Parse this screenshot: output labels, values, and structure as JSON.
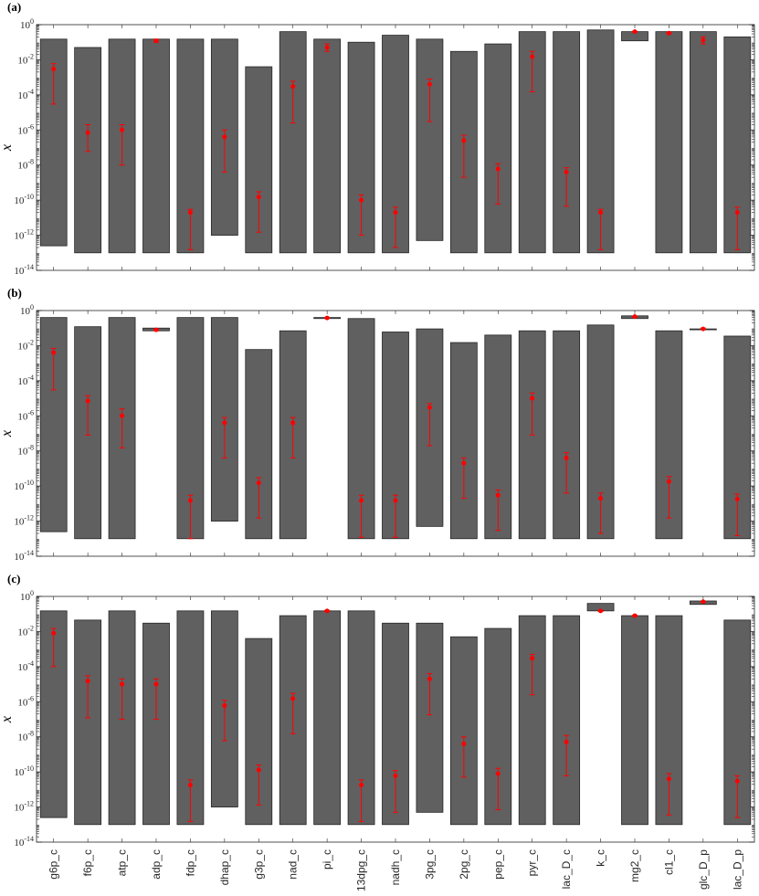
{
  "figure": {
    "ylabel": "x",
    "categories": [
      "g6p_c",
      "f6p_c",
      "atp_c",
      "adp_c",
      "fdp_c",
      "dhap_c",
      "g3p_c",
      "nad_c",
      "pi_c",
      "13dpg_c",
      "nadh_c",
      "3pg_c",
      "2pg_c",
      "pep_c",
      "pyr_c",
      "lac_D_c",
      "k_c",
      "mg2_c",
      "cl1_c",
      "glc_D_p",
      "lac_D_p"
    ],
    "colors": {
      "bar": "#606060",
      "bar_edge": "#262626",
      "marker": "#ff0000",
      "axis": "#262626"
    }
  },
  "chart_data": [
    {
      "type": "bar",
      "panel_label": "(a)",
      "ylabel": "x",
      "yscale": "log",
      "ylim": [
        1e-14,
        1
      ],
      "ytick_labels": [
        "10^-14",
        "10^-12",
        "10^-10",
        "10^-8",
        "10^-6",
        "10^-4",
        "10^-2",
        "10^0"
      ],
      "xtick_labels_shown": false,
      "categories": [
        "g6p_c",
        "f6p_c",
        "atp_c",
        "adp_c",
        "fdp_c",
        "dhap_c",
        "g3p_c",
        "nad_c",
        "pi_c",
        "13dpg_c",
        "nadh_c",
        "3pg_c",
        "2pg_c",
        "pep_c",
        "pyr_c",
        "lac_D_c",
        "k_c",
        "mg2_c",
        "cl1_c",
        "glc_D_p",
        "lac_D_p"
      ],
      "bar_lower": [
        2.5e-13,
        1e-13,
        1e-13,
        1e-13,
        1e-13,
        1e-12,
        1e-13,
        1e-13,
        1e-13,
        1e-13,
        1e-13,
        5e-13,
        1e-13,
        1e-13,
        1e-13,
        1e-13,
        1e-13,
        0.12,
        1e-13,
        1e-13,
        1e-13
      ],
      "bar_upper": [
        0.15,
        0.05,
        0.15,
        0.15,
        0.15,
        0.15,
        0.004,
        0.4,
        0.15,
        0.1,
        0.25,
        0.15,
        0.03,
        0.08,
        0.4,
        0.4,
        0.5,
        0.4,
        0.4,
        0.4,
        0.2
      ],
      "marker": [
        0.003,
        7e-07,
        1e-06,
        0.12,
        2e-11,
        4e-07,
        1.5e-10,
        0.0003,
        0.05,
        1e-10,
        2e-11,
        0.0004,
        2.5e-07,
        6e-09,
        0.015,
        4e-09,
        2e-11,
        0.4,
        0.33,
        0.13,
        2e-11
      ],
      "err_low": [
        3e-05,
        6e-08,
        1e-08,
        0.1,
        1.5e-13,
        4e-09,
        1.5e-12,
        2.5e-06,
        0.03,
        1e-12,
        2e-13,
        3e-06,
        2e-09,
        6e-11,
        0.00015,
        4.5e-11,
        1.5e-13,
        0.38,
        0.3,
        0.08,
        1.5e-13
      ],
      "err_high": [
        0.006,
        2e-06,
        2e-06,
        0.15,
        3e-11,
        1e-06,
        3e-10,
        0.0006,
        0.08,
        2e-10,
        4e-11,
        0.0008,
        5e-07,
        1.2e-08,
        0.03,
        7e-09,
        3e-11,
        0.42,
        0.36,
        0.2,
        4e-11
      ]
    },
    {
      "type": "bar",
      "panel_label": "(b)",
      "ylabel": "x",
      "yscale": "log",
      "ylim": [
        1e-14,
        1
      ],
      "ytick_labels": [
        "10^-14",
        "10^-12",
        "10^-10",
        "10^-8",
        "10^-6",
        "10^-4",
        "10^-2",
        "10^0"
      ],
      "xtick_labels_shown": false,
      "categories": [
        "g6p_c",
        "f6p_c",
        "atp_c",
        "adp_c",
        "fdp_c",
        "dhap_c",
        "g3p_c",
        "nad_c",
        "pi_c",
        "13dpg_c",
        "nadh_c",
        "3pg_c",
        "2pg_c",
        "pep_c",
        "pyr_c",
        "lac_D_c",
        "k_c",
        "mg2_c",
        "cl1_c",
        "glc_D_p",
        "lac_D_p"
      ],
      "bar_lower": [
        2.5e-13,
        1e-13,
        1e-13,
        0.07,
        1e-13,
        1e-12,
        1e-13,
        1e-13,
        0.35,
        1e-13,
        1e-13,
        5e-13,
        1e-13,
        1e-13,
        1e-13,
        1e-13,
        1e-13,
        0.35,
        1e-13,
        0.08,
        1e-13
      ],
      "bar_upper": [
        0.4,
        0.12,
        0.4,
        0.1,
        0.4,
        0.4,
        0.006,
        0.07,
        0.4,
        0.35,
        0.06,
        0.09,
        0.015,
        0.04,
        0.07,
        0.07,
        0.15,
        0.5,
        0.07,
        0.09,
        0.035
      ],
      "marker": [
        0.004,
        7e-06,
        1e-06,
        0.08,
        1.5e-11,
        4e-07,
        1.5e-10,
        4e-07,
        0.38,
        1.5e-11,
        1.5e-11,
        3e-06,
        2e-09,
        3e-11,
        1e-05,
        4e-09,
        2e-11,
        0.45,
        1.8e-10,
        0.09,
        1.8e-11
      ],
      "err_low": [
        3e-05,
        8e-08,
        1.5e-08,
        0.07,
        1e-13,
        4e-09,
        1.5e-12,
        4e-09,
        0.35,
        1.2e-13,
        1.2e-13,
        2e-08,
        2e-11,
        3e-13,
        8e-08,
        4e-11,
        2e-13,
        0.42,
        1.5e-12,
        0.085,
        1.5e-13
      ],
      "err_high": [
        0.007,
        1.4e-05,
        2.5e-06,
        0.09,
        3e-11,
        8e-07,
        3e-10,
        8e-07,
        0.4,
        3e-11,
        3e-11,
        5e-06,
        4e-09,
        6e-11,
        2e-05,
        8e-09,
        4e-11,
        0.48,
        3.5e-10,
        0.1,
        3.5e-11
      ]
    },
    {
      "type": "bar",
      "panel_label": "(c)",
      "ylabel": "x",
      "yscale": "log",
      "ylim": [
        1e-14,
        1
      ],
      "ytick_labels": [
        "10^-14",
        "10^-12",
        "10^-10",
        "10^-8",
        "10^-6",
        "10^-4",
        "10^-2",
        "10^0"
      ],
      "xtick_labels_shown": true,
      "categories": [
        "g6p_c",
        "f6p_c",
        "atp_c",
        "adp_c",
        "fdp_c",
        "dhap_c",
        "g3p_c",
        "nad_c",
        "pi_c",
        "13dpg_c",
        "nadh_c",
        "3pg_c",
        "2pg_c",
        "pep_c",
        "pyr_c",
        "lac_D_c",
        "k_c",
        "mg2_c",
        "cl1_c",
        "glc_D_p",
        "lac_D_p"
      ],
      "bar_lower": [
        2.5e-13,
        1e-13,
        1e-13,
        1e-13,
        1e-13,
        1e-12,
        1e-13,
        1e-13,
        1e-13,
        1e-13,
        1e-13,
        5e-13,
        1e-13,
        1e-13,
        1e-13,
        1e-13,
        0.15,
        1e-13,
        1e-13,
        0.35,
        1e-13
      ],
      "bar_upper": [
        0.15,
        0.045,
        0.15,
        0.03,
        0.15,
        0.15,
        0.004,
        0.08,
        0.15,
        0.15,
        0.03,
        0.03,
        0.005,
        0.015,
        0.08,
        0.08,
        0.4,
        0.08,
        0.08,
        0.55,
        0.045
      ],
      "marker": [
        0.008,
        1.5e-05,
        1e-05,
        1e-05,
        1.8e-11,
        6e-07,
        1.3e-10,
        1.5e-06,
        0.15,
        1.8e-11,
        6e-11,
        2e-05,
        4e-09,
        8e-11,
        0.0003,
        5e-09,
        0.15,
        0.08,
        4e-11,
        0.5,
        3e-11
      ],
      "err_low": [
        0.0001,
        1.2e-07,
        1e-07,
        1e-07,
        1.5e-13,
        6e-09,
        1.3e-12,
        1.5e-08,
        0.14,
        1.5e-13,
        5e-13,
        1.8e-07,
        5e-11,
        7e-13,
        2.5e-06,
        6e-11,
        0.14,
        0.075,
        3.5e-13,
        0.48,
        2.5e-13
      ],
      "err_high": [
        0.015,
        3e-05,
        2e-05,
        2e-05,
        3.5e-11,
        1.2e-06,
        2.5e-10,
        3e-06,
        0.16,
        3.5e-11,
        1.2e-10,
        4e-05,
        1e-08,
        1.6e-10,
        0.0005,
        1.2e-08,
        0.16,
        0.085,
        8e-11,
        0.52,
        6e-11
      ]
    }
  ]
}
